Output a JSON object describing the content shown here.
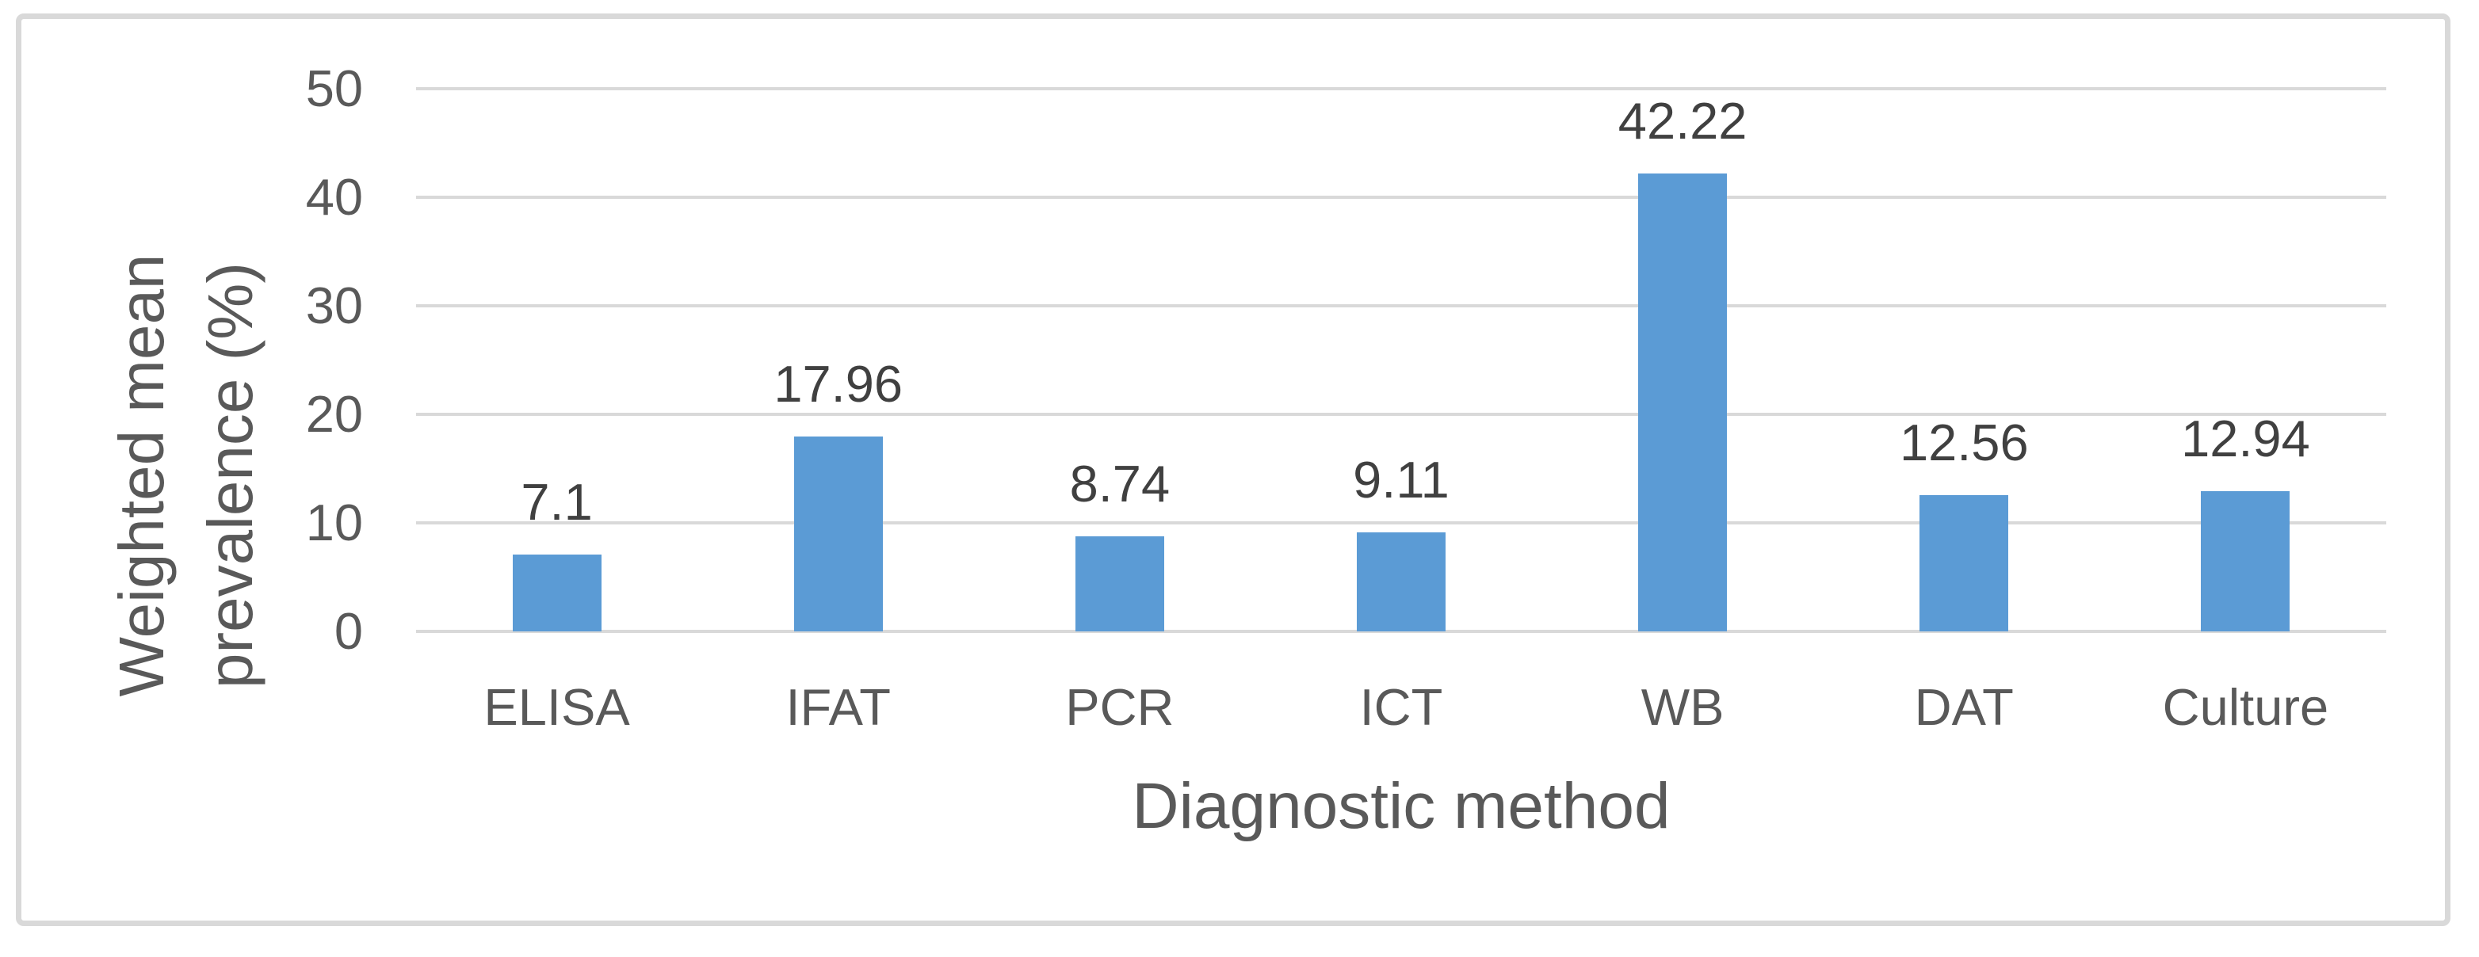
{
  "figure": {
    "background": "#ffffff",
    "frame_color": "#d9d9d9"
  },
  "chart_data": {
    "type": "bar",
    "title": "",
    "categories": [
      "ELISA",
      "IFAT",
      "PCR",
      "ICT",
      "WB",
      "DAT",
      "Culture"
    ],
    "values": [
      7.1,
      17.96,
      8.74,
      9.11,
      42.22,
      12.56,
      12.94
    ],
    "data_labels": [
      "7.1",
      "17.96",
      "8.74",
      "9.11",
      "42.22",
      "12.56",
      "12.94"
    ],
    "xlabel": "Diagnostic method",
    "ylabel": "Weighted mean prevalence (%)",
    "ylabel_lines": [
      "Weighted mean",
      "prevalence (%)"
    ],
    "ylim": [
      0,
      50
    ],
    "yticks": [
      50,
      40,
      30,
      20,
      10,
      0
    ],
    "grid": true,
    "legend": null,
    "bar_color": "#5b9bd5",
    "gridline_color": "#d9d9d9",
    "tick_text_color": "#595959",
    "data_label_color": "#404040"
  }
}
